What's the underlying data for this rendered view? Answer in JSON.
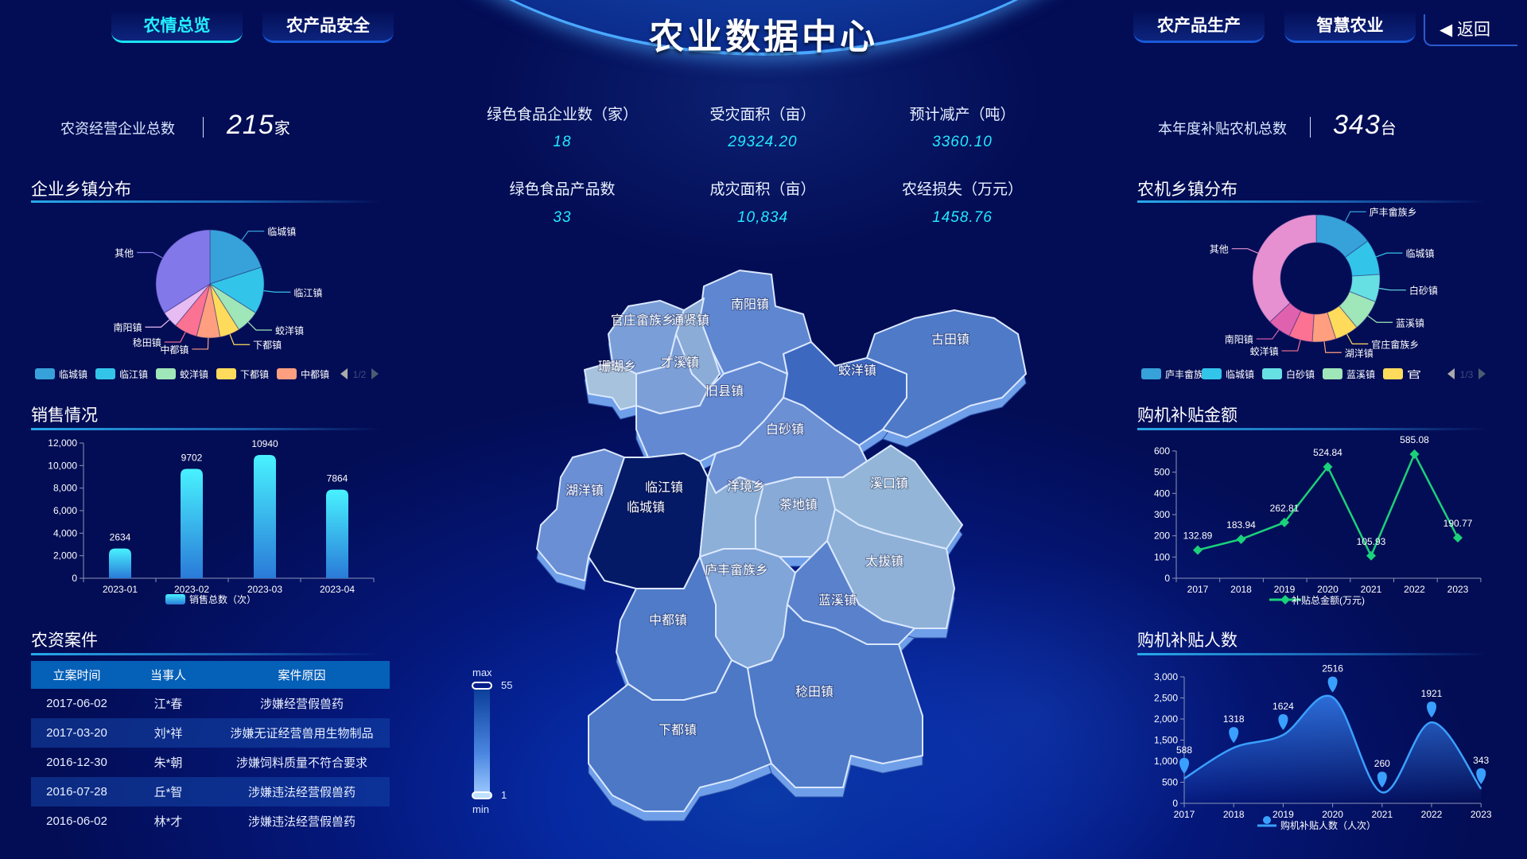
{
  "header": {
    "title": "农业数据中心",
    "tabs": [
      {
        "label": "农情总览",
        "active": true
      },
      {
        "label": "农产品安全",
        "active": false
      },
      {
        "label": "农产品生产",
        "active": false
      },
      {
        "label": "智慧农业",
        "active": false
      }
    ],
    "back_label": "返回"
  },
  "kpi_left": {
    "label": "农资经营企业总数",
    "value": "215",
    "unit": "家"
  },
  "kpi_right": {
    "label": "本年度补贴农机总数",
    "value": "343",
    "unit": "台"
  },
  "center_stats": [
    {
      "label": "绿色食品企业数（家）",
      "value": "18"
    },
    {
      "label": "受灾面积（亩）",
      "value": "29324.20"
    },
    {
      "label": "预计减产（吨）",
      "value": "3360.10"
    },
    {
      "label": "绿色食品产品数",
      "value": "33"
    },
    {
      "label": "成灾面积（亩）",
      "value": "10,834"
    },
    {
      "label": "农经损失（万元）",
      "value": "1458.76"
    }
  ],
  "sections": {
    "enterprise_town": "企业乡镇分布",
    "sales": "销售情况",
    "cases": "农资案件",
    "machine_town": "农机乡镇分布",
    "subsidy_amount": "购机补贴金额",
    "subsidy_people": "购机补贴人数"
  },
  "cases_table": {
    "columns": [
      "立案时间",
      "当事人",
      "案件原因"
    ],
    "rows": [
      [
        "2017-06-02",
        "江*春",
        "涉嫌经营假兽药"
      ],
      [
        "2017-03-20",
        "刘*祥",
        "涉嫌无证经营兽用生物制品"
      ],
      [
        "2016-12-30",
        "朱*朝",
        "涉嫌饲料质量不符合要求"
      ],
      [
        "2016-07-28",
        "丘*智",
        "涉嫌违法经营假兽药"
      ],
      [
        "2016-06-02",
        "林*才",
        "涉嫌违法经营假兽药"
      ]
    ]
  },
  "map": {
    "visual_map": {
      "max_label": "max",
      "min_label": "min",
      "max": "55",
      "min": "1"
    },
    "regions": [
      {
        "name": "南阳镇",
        "color": "#5f86d0"
      },
      {
        "name": "官庄畲族乡",
        "color": "#7a9ed8"
      },
      {
        "name": "通贤镇",
        "color": "#8aacd6"
      },
      {
        "name": "珊瑚乡",
        "color": "#a6c2dc"
      },
      {
        "name": "才溪镇",
        "color": "#7c9fd8"
      },
      {
        "name": "旧县镇",
        "color": "#6289d2"
      },
      {
        "name": "蛟洋镇",
        "color": "#3d68c0"
      },
      {
        "name": "古田镇",
        "color": "#4f7ac8"
      },
      {
        "name": "白砂镇",
        "color": "#6c90d4"
      },
      {
        "name": "湖洋镇",
        "color": "#6a8fd4"
      },
      {
        "name": "临江镇",
        "color": "#041a66"
      },
      {
        "name": "洋境乡",
        "color": "#8cb0d8"
      },
      {
        "name": "茶地镇",
        "color": "#88aad6"
      },
      {
        "name": "溪口镇",
        "color": "#93b6d8"
      },
      {
        "name": "太拔镇",
        "color": "#8fb1d8"
      },
      {
        "name": "庐丰畲族乡",
        "color": "#80a5d8"
      },
      {
        "name": "蓝溪镇",
        "color": "#5a82cc"
      },
      {
        "name": "中都镇",
        "color": "#507bc8"
      },
      {
        "name": "稔田镇",
        "color": "#4f7ac8"
      },
      {
        "name": "下都镇",
        "color": "#4c78c6"
      }
    ],
    "extra_labels": [
      "临城镇"
    ]
  },
  "chart_data": [
    {
      "id": "enterprise_pie",
      "type": "pie",
      "categories": [
        "临城镇",
        "临江镇",
        "蛟洋镇",
        "下都镇",
        "中都镇",
        "稔田镇",
        "南阳镇",
        "其他"
      ],
      "values": [
        20,
        14,
        7,
        6,
        7,
        7,
        5,
        34
      ],
      "colors": [
        "#37a2da",
        "#32c5e9",
        "#9fe6b8",
        "#ffdb5c",
        "#ff9f7f",
        "#fb7293",
        "#e7bcf3",
        "#8378ea"
      ],
      "legend_visible": 5,
      "legend_page": "1/2"
    },
    {
      "id": "sales_bar",
      "type": "bar",
      "categories": [
        "2023-01",
        "2023-02",
        "2023-03",
        "2023-04"
      ],
      "values": [
        2634,
        9702,
        10940,
        7864
      ],
      "ylim": [
        0,
        12000
      ],
      "yticks": [
        0,
        2000,
        4000,
        6000,
        8000,
        10000,
        12000
      ],
      "legend": "销售总数（次）"
    },
    {
      "id": "machine_donut",
      "type": "pie",
      "donut": true,
      "categories": [
        "庐丰畲族乡",
        "临城镇",
        "白砂镇",
        "蓝溪镇",
        "官庄畲族乡",
        "湖洋镇",
        "蛟洋镇",
        "南阳镇",
        "其他"
      ],
      "values": [
        15,
        9,
        7,
        8,
        6,
        6,
        6,
        6,
        37
      ],
      "colors": [
        "#37a2da",
        "#32c5e9",
        "#67e0e3",
        "#9fe6b8",
        "#ffdb5c",
        "#ff9f7f",
        "#fb7293",
        "#e062ae",
        "#e690d1"
      ],
      "legend_visible": 5,
      "legend_page": "1/3"
    },
    {
      "id": "subsidy_amount_line",
      "type": "line",
      "x": [
        "2017",
        "2018",
        "2019",
        "2020",
        "2021",
        "2022",
        "2023"
      ],
      "values": [
        132.89,
        183.94,
        262.81,
        524.84,
        105.93,
        585.08,
        190.77
      ],
      "ylim": [
        0,
        600
      ],
      "yticks": [
        0,
        100,
        200,
        300,
        400,
        500,
        600
      ],
      "legend": "补贴总金额(万元)",
      "color": "#1bd17a"
    },
    {
      "id": "subsidy_people_area",
      "type": "area",
      "x": [
        "2017",
        "2018",
        "2019",
        "2020",
        "2021",
        "2022",
        "2023"
      ],
      "values": [
        588,
        1318,
        1624,
        2516,
        260,
        1921,
        343
      ],
      "ylim": [
        0,
        3000
      ],
      "yticks": [
        0,
        500,
        1000,
        1500,
        2000,
        2500,
        3000
      ],
      "legend": "购机补贴人数（人次）",
      "color": "#3aa0ff"
    }
  ]
}
